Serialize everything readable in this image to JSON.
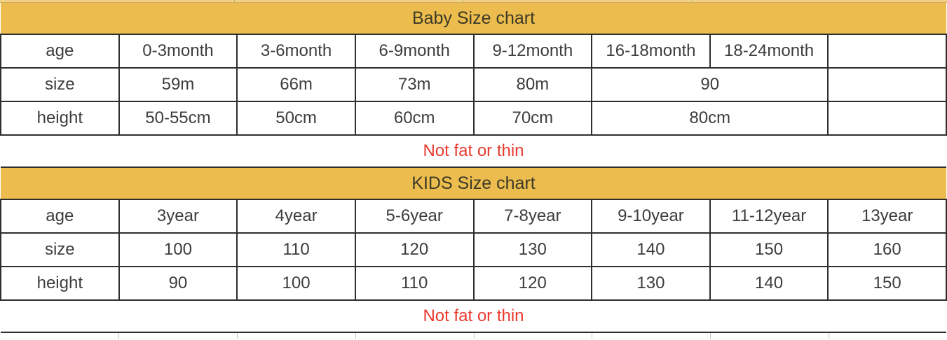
{
  "colors": {
    "header_bg": "#ecbd4e",
    "header_bg_cropped_top": "#f3d180",
    "header_text": "#3c3a28",
    "body_text": "#3d3d3d",
    "note_text": "#e93a2e",
    "border": "#2e2e2e",
    "faint_divider": "#c4c4c4",
    "background": "#ffffff"
  },
  "chart_data": [
    {
      "type": "table",
      "title": "Baby Size chart",
      "note": "Not fat or thin",
      "row_labels": [
        "age",
        "size",
        "height"
      ],
      "rows": [
        {
          "cells": [
            {
              "text": "age"
            },
            {
              "text": "0-3month"
            },
            {
              "text": "3-6month"
            },
            {
              "text": "6-9month"
            },
            {
              "text": "9-12month"
            },
            {
              "text": "16-18month"
            },
            {
              "text": "18-24month"
            },
            {
              "text": ""
            }
          ]
        },
        {
          "cells": [
            {
              "text": "size"
            },
            {
              "text": "59m"
            },
            {
              "text": "66m"
            },
            {
              "text": "73m"
            },
            {
              "text": "80m"
            },
            {
              "text": "90",
              "span": 2
            },
            {
              "text": ""
            }
          ]
        },
        {
          "cells": [
            {
              "text": "height"
            },
            {
              "text": "50-55cm"
            },
            {
              "text": "50cm"
            },
            {
              "text": "60cm"
            },
            {
              "text": "70cm"
            },
            {
              "text": "80cm",
              "span": 2
            },
            {
              "text": ""
            }
          ]
        }
      ]
    },
    {
      "type": "table",
      "title": "KIDS Size chart",
      "note": "Not fat or thin",
      "row_labels": [
        "age",
        "size",
        "height"
      ],
      "rows": [
        {
          "cells": [
            {
              "text": "age"
            },
            {
              "text": "3year"
            },
            {
              "text": "4year"
            },
            {
              "text": "5-6year"
            },
            {
              "text": "7-8year"
            },
            {
              "text": "9-10year"
            },
            {
              "text": "11-12year"
            },
            {
              "text": "13year"
            }
          ]
        },
        {
          "cells": [
            {
              "text": "size"
            },
            {
              "text": "100"
            },
            {
              "text": "110"
            },
            {
              "text": "120"
            },
            {
              "text": "130"
            },
            {
              "text": "140"
            },
            {
              "text": "150"
            },
            {
              "text": "160"
            }
          ]
        },
        {
          "cells": [
            {
              "text": "height"
            },
            {
              "text": "90"
            },
            {
              "text": "100"
            },
            {
              "text": "110"
            },
            {
              "text": "120"
            },
            {
              "text": "130"
            },
            {
              "text": "140"
            },
            {
              "text": "150"
            }
          ]
        }
      ]
    }
  ]
}
